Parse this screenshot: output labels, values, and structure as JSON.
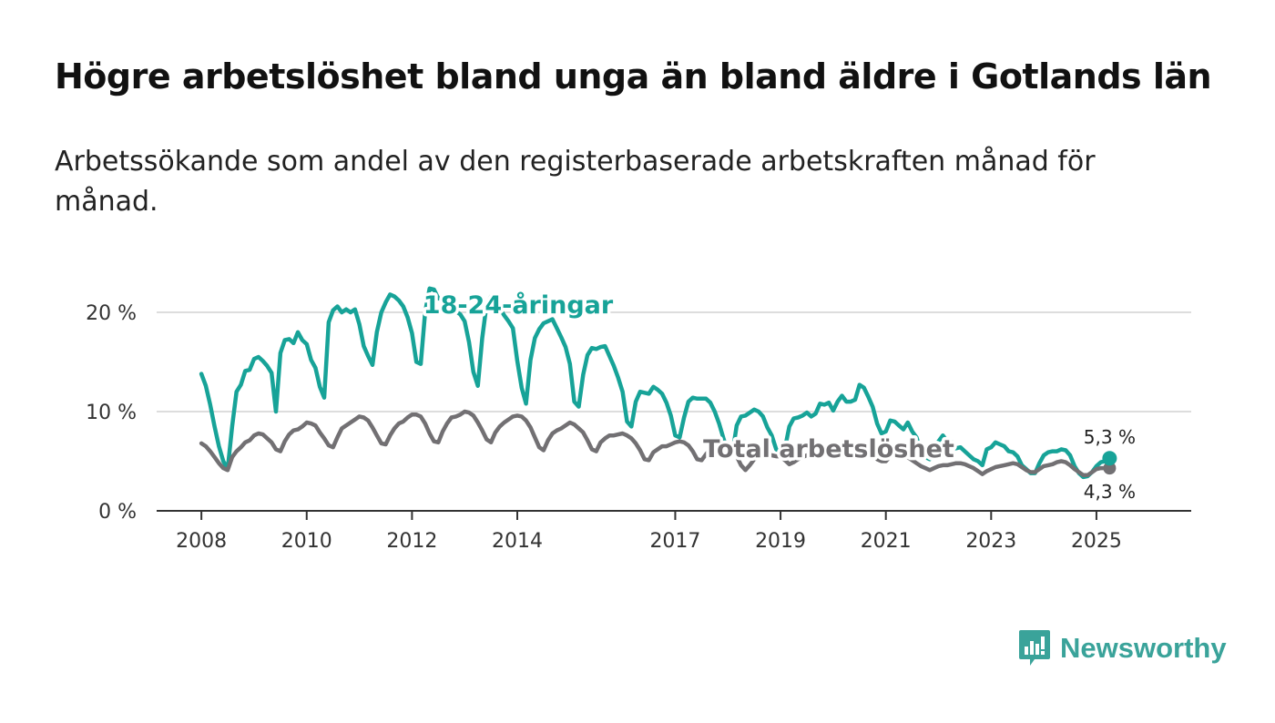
{
  "title": "Högre arbetslöshet bland unga än bland äldre i Gotlands län",
  "subtitle": "Arbetssökande som andel av den registerbaserade arbetskraften månad för månad.",
  "logo": {
    "text": "Newsworthy"
  },
  "colors": {
    "youth": "#17a398",
    "total": "#727073",
    "grid": "#dddddd",
    "axis": "#333333"
  },
  "chart_data": {
    "type": "line",
    "x_start": 2008.0,
    "x_step": 0.0833333,
    "xlim": [
      2007.15,
      2026.8
    ],
    "ylim": [
      0,
      20
    ],
    "y_ticks": [
      0,
      10,
      20
    ],
    "y_tick_labels": [
      "0 %",
      "10 %",
      "20 %"
    ],
    "x_ticks": [
      2008,
      2010,
      2012,
      2014,
      2017,
      2019,
      2021,
      2023,
      2025
    ],
    "x_tick_labels": [
      "2008",
      "2010",
      "2012",
      "2014",
      "2017",
      "2019",
      "2021",
      "2023",
      "2025"
    ],
    "series": [
      {
        "name": "18-24-åringar",
        "label": "18-24-åringar",
        "end_label": "5,3 %",
        "values": [
          13.8,
          12.6,
          10.7,
          8.5,
          6.5,
          5.0,
          4.2,
          8.5,
          12.0,
          12.7,
          14.1,
          14.2,
          15.3,
          15.5,
          15.1,
          14.6,
          13.9,
          10.0,
          15.9,
          17.2,
          17.3,
          16.9,
          18.0,
          17.2,
          16.8,
          15.2,
          14.4,
          12.5,
          11.4,
          19.0,
          20.2,
          20.6,
          20.0,
          20.3,
          20.0,
          20.3,
          18.8,
          16.6,
          15.6,
          14.7,
          18.0,
          20.0,
          21.0,
          21.8,
          21.6,
          21.2,
          20.6,
          19.5,
          17.9,
          15.0,
          14.8,
          20.0,
          22.4,
          22.3,
          21.4,
          21.3,
          21.0,
          20.6,
          20.1,
          19.8,
          19.1,
          17.0,
          14.0,
          12.6,
          17.4,
          20.8,
          21.6,
          21.2,
          20.4,
          19.7,
          19.1,
          18.4,
          15.1,
          12.4,
          10.8,
          15.2,
          17.4,
          18.3,
          18.9,
          19.1,
          19.3,
          18.4,
          17.5,
          16.5,
          14.8,
          11.0,
          10.5,
          13.7,
          15.7,
          16.4,
          16.3,
          16.5,
          16.6,
          15.6,
          14.6,
          13.4,
          12.0,
          9.0,
          8.5,
          11.0,
          12.0,
          11.9,
          11.8,
          12.5,
          12.2,
          11.8,
          10.9,
          9.6,
          7.6,
          7.4,
          9.4,
          11.0,
          11.4,
          11.3,
          11.3,
          11.3,
          10.9,
          10.0,
          8.8,
          7.3,
          5.9,
          5.7,
          8.6,
          9.5,
          9.6,
          9.9,
          10.2,
          10.0,
          9.5,
          8.4,
          7.6,
          6.2,
          6.0,
          6.3,
          8.5,
          9.3,
          9.4,
          9.6,
          9.9,
          9.5,
          9.8,
          10.8,
          10.7,
          10.9,
          10.1,
          11.0,
          11.6,
          11.0,
          11.0,
          11.2,
          12.7,
          12.4,
          11.5,
          10.5,
          8.8,
          7.8,
          8.0,
          9.1,
          9.0,
          8.6,
          8.2,
          8.9,
          8.0,
          7.4,
          6.0,
          5.4,
          5.2,
          5.6,
          7.0,
          7.6,
          7.0,
          6.9,
          6.3,
          6.4,
          6.0,
          5.6,
          5.2,
          5.0,
          4.6,
          6.2,
          6.4,
          6.9,
          6.7,
          6.5,
          6.0,
          5.9,
          5.5,
          4.6,
          4.2,
          3.8,
          3.8,
          4.8,
          5.6,
          5.9,
          6.0,
          6.0,
          6.2,
          6.1,
          5.6,
          4.5,
          3.8,
          3.4,
          3.5,
          3.9,
          4.5,
          4.9,
          5.0,
          5.3
        ]
      },
      {
        "name": "Total arbetslöshet",
        "label": "Total arbetslöshet",
        "end_label": "4,3 %",
        "values": [
          6.8,
          6.5,
          6.0,
          5.4,
          4.8,
          4.3,
          4.1,
          5.4,
          6.0,
          6.4,
          6.9,
          7.1,
          7.6,
          7.8,
          7.7,
          7.3,
          6.9,
          6.2,
          6.0,
          7.0,
          7.7,
          8.1,
          8.2,
          8.5,
          8.9,
          8.8,
          8.6,
          7.9,
          7.3,
          6.6,
          6.4,
          7.4,
          8.3,
          8.6,
          8.9,
          9.2,
          9.5,
          9.4,
          9.1,
          8.4,
          7.6,
          6.8,
          6.7,
          7.6,
          8.3,
          8.8,
          9.0,
          9.4,
          9.7,
          9.7,
          9.5,
          8.8,
          7.8,
          7.0,
          6.9,
          8.0,
          8.8,
          9.4,
          9.5,
          9.7,
          10.0,
          9.9,
          9.6,
          8.9,
          8.1,
          7.2,
          6.9,
          7.9,
          8.5,
          8.9,
          9.2,
          9.5,
          9.6,
          9.5,
          9.1,
          8.4,
          7.4,
          6.4,
          6.1,
          7.1,
          7.8,
          8.1,
          8.3,
          8.6,
          8.9,
          8.7,
          8.3,
          7.9,
          7.1,
          6.2,
          6.0,
          6.9,
          7.3,
          7.6,
          7.6,
          7.7,
          7.8,
          7.6,
          7.3,
          6.8,
          6.1,
          5.2,
          5.1,
          5.9,
          6.2,
          6.5,
          6.5,
          6.7,
          6.9,
          7.0,
          6.9,
          6.6,
          6.0,
          5.2,
          5.1,
          5.7,
          6.2,
          6.4,
          6.5,
          6.6,
          6.5,
          6.1,
          5.5,
          4.6,
          4.1,
          4.6,
          5.2,
          5.4,
          5.5,
          5.6,
          5.6,
          5.5,
          5.5,
          5.1,
          4.7,
          4.9,
          5.2,
          5.4,
          5.6,
          5.7,
          5.8,
          5.8,
          5.9,
          6.0,
          6.0,
          6.1,
          5.9,
          5.8,
          5.7,
          5.9,
          6.2,
          6.3,
          6.0,
          5.7,
          5.2,
          5.0,
          5.0,
          5.5,
          5.5,
          5.3,
          5.3,
          5.4,
          5.1,
          4.8,
          4.5,
          4.3,
          4.1,
          4.3,
          4.5,
          4.6,
          4.6,
          4.7,
          4.8,
          4.8,
          4.7,
          4.5,
          4.3,
          4.0,
          3.7,
          4.0,
          4.2,
          4.4,
          4.5,
          4.6,
          4.7,
          4.8,
          4.7,
          4.4,
          4.1,
          3.9,
          3.9,
          4.2,
          4.5,
          4.6,
          4.7,
          4.9,
          5.0,
          4.9,
          4.6,
          4.2,
          3.9,
          3.6,
          3.6,
          3.9,
          4.2,
          4.3,
          4.3,
          4.3
        ]
      }
    ]
  }
}
